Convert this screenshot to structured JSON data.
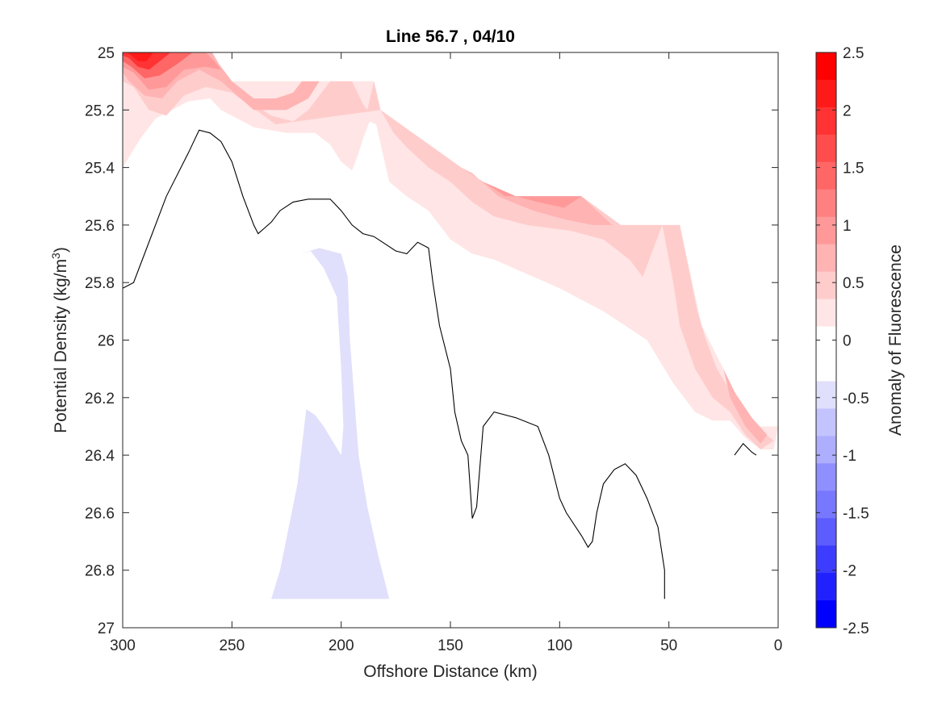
{
  "chart_data": {
    "type": "contour",
    "title": "Line 56.7 , 04/10",
    "xlabel": "Offshore Distance (km)",
    "ylabel_main": "Potential Density (kg/m",
    "ylabel_sup": "3",
    "ylabel_tail": ")",
    "xlim": [
      300,
      0
    ],
    "ylim": [
      25,
      27
    ],
    "x_reversed": true,
    "y_reversed": true,
    "xticks": [
      300,
      250,
      200,
      150,
      100,
      50,
      0
    ],
    "xtick_labels": [
      "300",
      "250",
      "200",
      "150",
      "100",
      "50",
      "0"
    ],
    "yticks": [
      25,
      25.2,
      25.4,
      25.6,
      25.8,
      26,
      26.2,
      26.4,
      26.6,
      26.8,
      27
    ],
    "ytick_labels": [
      "25",
      "25.2",
      "25.4",
      "25.6",
      "25.8",
      "26",
      "26.2",
      "26.4",
      "26.6",
      "26.8",
      "27"
    ],
    "colorbar": {
      "label": "Anomaly of Fluorescence",
      "range": [
        -2.5,
        2.5
      ],
      "ticks": [
        2.5,
        2,
        1.5,
        1,
        0.5,
        0,
        -0.5,
        -1,
        -1.5,
        -2,
        -2.5
      ],
      "tick_labels": [
        "2.5",
        "2",
        "1.5",
        "1",
        "0.5",
        "0",
        "-0.5",
        "-1",
        "-1.5",
        "-2",
        "-2.5"
      ],
      "levels": [
        -2.5,
        -2.25,
        -2,
        -1.75,
        -1.5,
        -1.25,
        -1,
        -0.75,
        -0.5,
        -0.25,
        0,
        0.25,
        0.5,
        0.75,
        1,
        1.25,
        1.5,
        1.75,
        2,
        2.25,
        2.5
      ],
      "colors_top_to_bottom": [
        "#ff0000",
        "#ff1a1a",
        "#ff3333",
        "#ff4d4d",
        "#ff6666",
        "#ff8080",
        "#ff9999",
        "#ffb3b3",
        "#ffcccc",
        "#ffe5e5",
        "#ffffff",
        "#ffffff",
        "#e0e0fc",
        "#c3c3ff",
        "#aeaefe",
        "#8f8fff",
        "#7777ff",
        "#5c5cff",
        "#3d3dff",
        "#2121ff",
        "#0000ff"
      ]
    },
    "regions": [
      {
        "name": "anomaly-0.25-to-0.5",
        "color": "#ffe5e5",
        "polygon": [
          [
            300,
            25
          ],
          [
            259,
            25
          ],
          [
            255,
            25.1
          ],
          [
            185,
            25.1
          ],
          [
            182,
            25.2
          ],
          [
            145,
            25.4
          ],
          [
            125,
            25.5
          ],
          [
            90,
            25.5
          ],
          [
            72,
            25.6
          ],
          [
            45,
            25.6
          ],
          [
            35,
            25.95
          ],
          [
            25,
            26.1
          ],
          [
            12,
            26.3
          ],
          [
            0,
            26.3
          ],
          [
            2,
            26.38
          ],
          [
            8,
            26.38
          ],
          [
            15,
            26.34
          ],
          [
            22,
            26.28
          ],
          [
            30,
            26.28
          ],
          [
            38,
            26.25
          ],
          [
            48,
            26.15
          ],
          [
            60,
            26.0
          ],
          [
            80,
            25.9
          ],
          [
            100,
            25.82
          ],
          [
            115,
            25.77
          ],
          [
            130,
            25.72
          ],
          [
            140,
            25.7
          ],
          [
            150,
            25.65
          ],
          [
            160,
            25.55
          ],
          [
            170,
            25.5
          ],
          [
            178,
            25.45
          ],
          [
            181,
            25.35
          ],
          [
            184,
            25.25
          ],
          [
            187,
            25.24
          ],
          [
            190,
            25.3
          ],
          [
            192,
            25.35
          ],
          [
            195,
            25.41
          ],
          [
            200,
            25.38
          ],
          [
            205,
            25.32
          ],
          [
            212,
            25.28
          ],
          [
            225,
            25.28
          ],
          [
            240,
            25.26
          ],
          [
            255,
            25.2
          ],
          [
            260,
            25.16
          ],
          [
            270,
            25.17
          ],
          [
            285,
            25.23
          ],
          [
            292,
            25.3
          ],
          [
            300,
            25.4
          ]
        ]
      },
      {
        "name": "anomaly-0.5-to-0.75",
        "color": "#ffcccc",
        "polygon": [
          [
            300,
            25
          ],
          [
            259,
            25
          ],
          [
            255,
            25.1
          ],
          [
            250,
            25.1
          ],
          [
            247,
            25.13
          ],
          [
            240,
            25.18
          ],
          [
            232,
            25.22
          ],
          [
            222,
            25.24
          ],
          [
            215,
            25.2
          ],
          [
            210,
            25.15
          ],
          [
            205,
            25.1
          ],
          [
            195,
            25.1
          ],
          [
            190,
            25.18
          ],
          [
            188,
            25.2
          ],
          [
            185,
            25.1
          ],
          [
            182,
            25.2
          ],
          [
            145,
            25.4
          ],
          [
            125,
            25.5
          ],
          [
            90,
            25.5
          ],
          [
            72,
            25.6
          ],
          [
            45,
            25.6
          ],
          [
            37,
            25.9
          ],
          [
            33,
            26.0
          ],
          [
            28,
            26.1
          ],
          [
            20,
            26.2
          ],
          [
            10,
            26.3
          ],
          [
            2,
            26.35
          ],
          [
            8,
            26.38
          ],
          [
            15,
            26.33
          ],
          [
            22,
            26.25
          ],
          [
            30,
            26.2
          ],
          [
            38,
            26.1
          ],
          [
            45,
            25.95
          ],
          [
            48,
            25.8
          ],
          [
            53,
            25.6
          ],
          [
            58,
            25.7
          ],
          [
            62,
            25.78
          ],
          [
            68,
            25.72
          ],
          [
            80,
            25.65
          ],
          [
            95,
            25.62
          ],
          [
            115,
            25.6
          ],
          [
            130,
            25.57
          ],
          [
            140,
            25.52
          ],
          [
            150,
            25.45
          ],
          [
            160,
            25.4
          ],
          [
            170,
            25.33
          ],
          [
            176,
            25.28
          ],
          [
            182,
            25.2
          ],
          [
            230,
            25.25
          ],
          [
            250,
            25.14
          ],
          [
            262,
            25.12
          ],
          [
            272,
            25.15
          ],
          [
            280,
            25.22
          ],
          [
            288,
            25.2
          ],
          [
            295,
            25.12
          ],
          [
            300,
            25.1
          ]
        ]
      },
      {
        "name": "anomaly-0.75-to-1",
        "color": "#ffb3b3",
        "polygon": [
          [
            300,
            25
          ],
          [
            259,
            25
          ],
          [
            256,
            25.04
          ],
          [
            252,
            25.08
          ],
          [
            250,
            25.1
          ],
          [
            240,
            25.16
          ],
          [
            230,
            25.16
          ],
          [
            222,
            25.14
          ],
          [
            218,
            25.1
          ],
          [
            210,
            25.1
          ],
          [
            215,
            25.16
          ],
          [
            225,
            25.2
          ],
          [
            240,
            25.2
          ],
          [
            255,
            25.1
          ],
          [
            265,
            25.06
          ],
          [
            275,
            25.1
          ],
          [
            282,
            25.16
          ],
          [
            290,
            25.15
          ],
          [
            297,
            25.1
          ],
          [
            300,
            25.07
          ]
        ]
      },
      {
        "name": "anomaly-0.75-to-1-offshore",
        "color": "#ffb3b3",
        "polygon": [
          [
            145,
            25.4
          ],
          [
            125,
            25.5
          ],
          [
            90,
            25.5
          ],
          [
            76,
            25.6
          ],
          [
            85,
            25.6
          ],
          [
            98,
            25.58
          ],
          [
            112,
            25.55
          ],
          [
            122,
            25.52
          ],
          [
            128,
            25.5
          ],
          [
            134,
            25.46
          ],
          [
            140,
            25.42
          ]
        ]
      },
      {
        "name": "anomaly-0.75-to-1-coastal",
        "color": "#ffb3b3",
        "polygon": [
          [
            25,
            26.1
          ],
          [
            20,
            26.18
          ],
          [
            12,
            26.27
          ],
          [
            5,
            26.33
          ],
          [
            8,
            26.36
          ],
          [
            15,
            26.3
          ],
          [
            22,
            26.2
          ]
        ]
      },
      {
        "name": "anomaly-1-to-1.5",
        "color": "#ff9999",
        "polygon": [
          [
            300,
            25
          ],
          [
            262,
            25
          ],
          [
            258,
            25.03
          ],
          [
            255,
            25.06
          ],
          [
            262,
            25.05
          ],
          [
            272,
            25.06
          ],
          [
            280,
            25.12
          ],
          [
            288,
            25.13
          ],
          [
            295,
            25.07
          ],
          [
            300,
            25.05
          ]
        ]
      },
      {
        "name": "anomaly-1-to-1.5-offshore",
        "color": "#ff9999",
        "polygon": [
          [
            135,
            25.45
          ],
          [
            125,
            25.5
          ],
          [
            100,
            25.5
          ],
          [
            90,
            25.5
          ],
          [
            98,
            25.54
          ],
          [
            110,
            25.52
          ],
          [
            120,
            25.5
          ]
        ]
      },
      {
        "name": "anomaly-1.5-to-2",
        "color": "#ff6666",
        "polygon": [
          [
            300,
            25
          ],
          [
            268,
            25
          ],
          [
            275,
            25.04
          ],
          [
            283,
            25.08
          ],
          [
            290,
            25.09
          ],
          [
            296,
            25.05
          ],
          [
            300,
            25.03
          ]
        ]
      },
      {
        "name": "anomaly-2-to-2.5",
        "color": "#ff3333",
        "polygon": [
          [
            300,
            25
          ],
          [
            278,
            25
          ],
          [
            283,
            25.03
          ],
          [
            288,
            25.06
          ],
          [
            293,
            25.05
          ],
          [
            297,
            25.02
          ],
          [
            300,
            25.01
          ]
        ]
      },
      {
        "name": "anomaly-2.25-plus",
        "color": "#ff1a1a",
        "polygon": [
          [
            298,
            25
          ],
          [
            286,
            25
          ],
          [
            289,
            25.03
          ],
          [
            293,
            25.03
          ],
          [
            296,
            25.01
          ]
        ]
      },
      {
        "name": "anomaly-minus-0.25-to-minus-0.5",
        "color": "#e0e0fc",
        "polygon": [
          [
            219,
            25.7
          ],
          [
            214,
            25.69
          ],
          [
            208,
            25.75
          ],
          [
            202,
            25.85
          ],
          [
            200,
            26.1
          ],
          [
            199,
            26.3
          ],
          [
            200,
            26.4
          ],
          [
            204,
            26.35
          ],
          [
            208,
            26.3
          ],
          [
            212,
            26.26
          ],
          [
            216,
            26.24
          ],
          [
            220,
            26.5
          ],
          [
            224,
            26.65
          ],
          [
            228,
            26.8
          ],
          [
            232,
            26.9
          ],
          [
            200,
            26.9
          ],
          [
            178,
            26.9
          ],
          [
            183,
            26.75
          ],
          [
            188,
            26.58
          ],
          [
            192,
            26.4
          ],
          [
            194,
            26.2
          ],
          [
            196,
            26.0
          ],
          [
            197,
            25.78
          ],
          [
            200,
            25.7
          ],
          [
            210,
            25.68
          ]
        ]
      }
    ],
    "zero_contour": [
      [
        [
          300,
          25.82
        ],
        [
          295,
          25.8
        ],
        [
          290,
          25.7
        ],
        [
          280,
          25.5
        ],
        [
          270,
          25.35
        ],
        [
          265,
          25.27
        ],
        [
          260,
          25.28
        ],
        [
          255,
          25.31
        ],
        [
          250,
          25.38
        ],
        [
          245,
          25.5
        ],
        [
          240,
          25.6
        ],
        [
          238,
          25.63
        ],
        [
          235,
          25.61
        ],
        [
          232,
          25.59
        ],
        [
          228,
          25.55
        ],
        [
          222,
          25.52
        ],
        [
          215,
          25.51
        ],
        [
          205,
          25.51
        ],
        [
          200,
          25.55
        ],
        [
          195,
          25.6
        ],
        [
          190,
          25.63
        ],
        [
          185,
          25.64
        ],
        [
          175,
          25.69
        ],
        [
          170,
          25.7
        ],
        [
          165,
          25.66
        ],
        [
          160,
          25.68
        ],
        [
          158,
          25.8
        ],
        [
          155,
          25.95
        ],
        [
          150,
          26.1
        ],
        [
          148,
          26.25
        ],
        [
          145,
          26.35
        ],
        [
          142,
          26.4
        ],
        [
          140,
          26.62
        ],
        [
          138,
          26.58
        ],
        [
          135,
          26.3
        ],
        [
          130,
          26.25
        ],
        [
          120,
          26.27
        ],
        [
          110,
          26.3
        ],
        [
          105,
          26.4
        ],
        [
          100,
          26.55
        ],
        [
          97,
          26.6
        ],
        [
          90,
          26.68
        ],
        [
          87,
          26.72
        ],
        [
          85,
          26.7
        ],
        [
          83,
          26.6
        ],
        [
          80,
          26.5
        ],
        [
          75,
          26.45
        ],
        [
          70,
          26.43
        ],
        [
          65,
          26.47
        ],
        [
          60,
          26.55
        ],
        [
          55,
          26.65
        ],
        [
          52,
          26.8
        ],
        [
          52,
          26.9
        ]
      ],
      [
        [
          20,
          26.4
        ],
        [
          16,
          26.36
        ],
        [
          12,
          26.39
        ],
        [
          10,
          26.4
        ]
      ]
    ]
  }
}
